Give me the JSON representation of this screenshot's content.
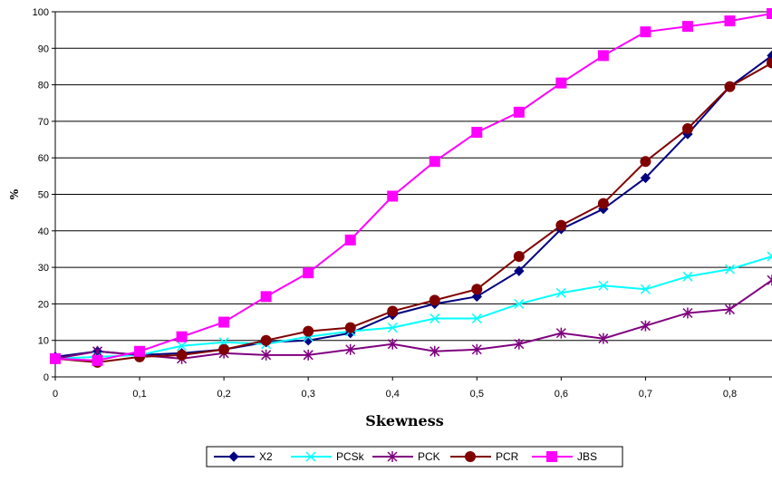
{
  "chart_data": {
    "type": "line",
    "title": "",
    "xlabel": "Skewness",
    "ylabel": "%",
    "x": [
      0,
      0.05,
      0.1,
      0.15,
      0.2,
      0.25,
      0.3,
      0.35,
      0.4,
      0.45,
      0.5,
      0.55,
      0.6,
      0.65,
      0.7,
      0.75,
      0.8,
      0.85
    ],
    "xlim": [
      0,
      0.85
    ],
    "ylim": [
      0,
      100
    ],
    "x_ticks": [
      0,
      0.1,
      0.2,
      0.3,
      0.4,
      0.5,
      0.6,
      0.7,
      0.8
    ],
    "x_tick_labels": [
      "0",
      "0,1",
      "0,2",
      "0,3",
      "0,4",
      "0,5",
      "0,6",
      "0,7",
      "0,8"
    ],
    "y_ticks": [
      0,
      10,
      20,
      30,
      40,
      50,
      60,
      70,
      80,
      90,
      100
    ],
    "y_tick_labels": [
      "0",
      "10",
      "20",
      "30",
      "40",
      "50",
      "60",
      "70",
      "80",
      "90",
      "100"
    ],
    "grid": "horizontal",
    "legend_position": "bottom",
    "series": [
      {
        "name": "X2",
        "color": "#000080",
        "marker": "diamond",
        "values": [
          5.5,
          7,
          6,
          6.5,
          7.5,
          9.5,
          10,
          12,
          17,
          20,
          22,
          29,
          40.5,
          46,
          54.5,
          66.5,
          79.5,
          88
        ]
      },
      {
        "name": "PCSk",
        "color": "#00FFFF",
        "marker": "x",
        "values": [
          5,
          5.5,
          6,
          8.5,
          9.5,
          9,
          11,
          12.5,
          13.5,
          16,
          16,
          20,
          23,
          25,
          24,
          27.5,
          29.5,
          33
        ]
      },
      {
        "name": "PCK",
        "color": "#800080",
        "marker": "star",
        "values": [
          5,
          7,
          6,
          5,
          6.5,
          6,
          6,
          7.5,
          9,
          7,
          7.5,
          9,
          12,
          10.5,
          14,
          17.5,
          18.5,
          26.5
        ]
      },
      {
        "name": "PCR",
        "color": "#800000",
        "marker": "circle",
        "values": [
          5,
          4,
          5.5,
          6,
          7.5,
          10,
          12.5,
          13.5,
          18,
          21,
          24,
          33,
          41.5,
          47.5,
          59,
          68,
          79.5,
          86
        ]
      },
      {
        "name": "JBS",
        "color": "#FF00FF",
        "marker": "square",
        "values": [
          5,
          4.5,
          7,
          11,
          15,
          22,
          28.5,
          37.5,
          49.5,
          59,
          67,
          72.5,
          80.5,
          88,
          94.5,
          96,
          97.5,
          99.5
        ]
      }
    ]
  }
}
